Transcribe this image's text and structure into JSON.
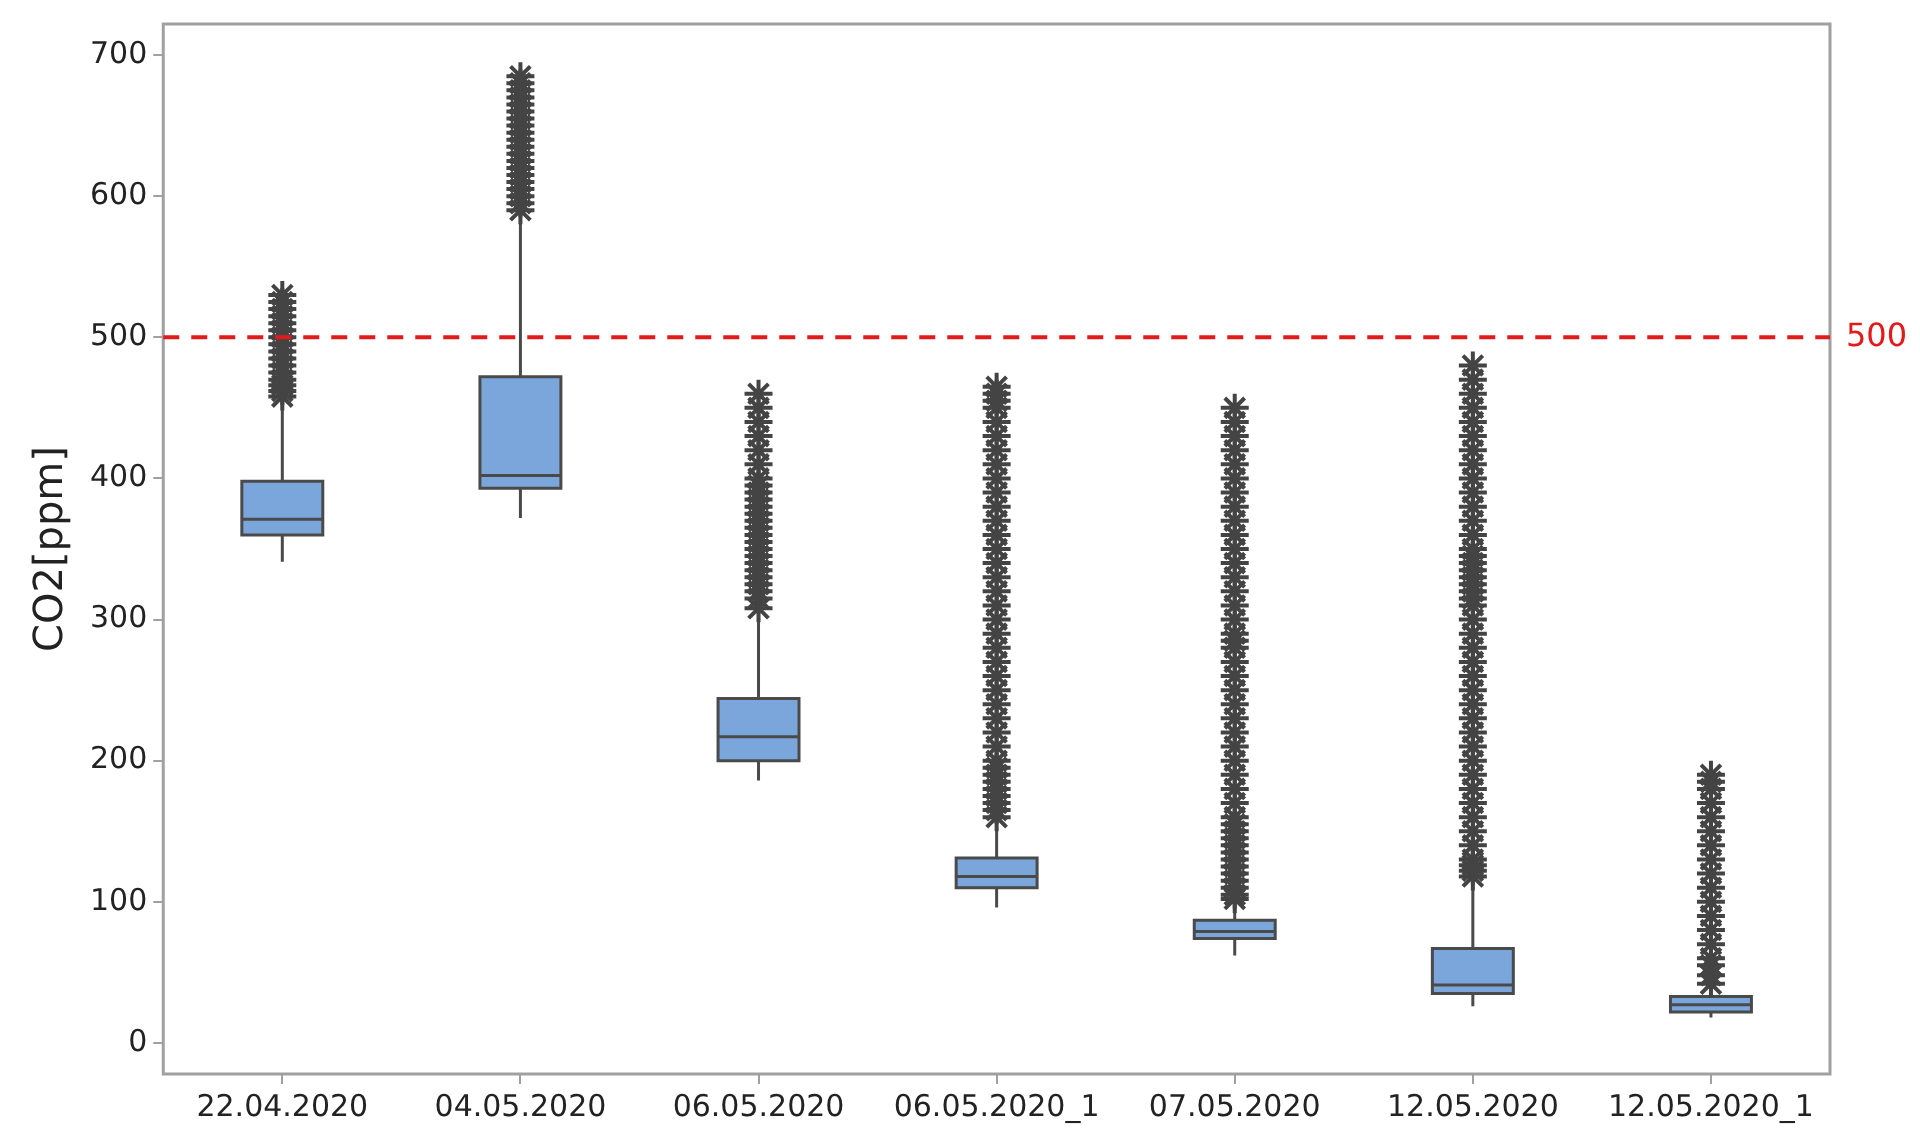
{
  "chart_data": {
    "type": "box",
    "ylabel": "CO2[ppm]",
    "categories": [
      "22.04.2020",
      "04.05.2020",
      "06.05.2020",
      "06.05.2020_1",
      "07.05.2020",
      "12.05.2020",
      "12.05.2020_1"
    ],
    "color": "#7aa6dc",
    "ylim": [
      -22,
      722
    ],
    "yticks": [
      0,
      100,
      200,
      300,
      400,
      500,
      600,
      700
    ],
    "grid": false,
    "legend": false,
    "marker": "star",
    "ref_lines": [
      {
        "axis": "y",
        "value": 500,
        "label": "500",
        "color": "#e31a1c",
        "line_style": "dashed"
      }
    ],
    "boxes": [
      {
        "low": 341,
        "q1": 360,
        "median": 371,
        "q3": 398,
        "high": 455,
        "outliers": [
          458,
          462,
          466,
          470,
          475,
          480,
          485,
          490,
          495,
          500,
          505,
          510,
          515,
          520,
          525,
          530
        ]
      },
      {
        "low": 372,
        "q1": 393,
        "median": 402,
        "q3": 472,
        "high": 583,
        "outliers": [
          590,
          595,
          600,
          605,
          610,
          615,
          620,
          625,
          630,
          635,
          640,
          645,
          650,
          655,
          660,
          665,
          670,
          675,
          680,
          685
        ]
      },
      {
        "low": 186,
        "q1": 200,
        "median": 217,
        "q3": 244,
        "high": 305,
        "outliers": [
          308,
          315,
          320,
          325,
          330,
          335,
          340,
          345,
          350,
          355,
          360,
          365,
          370,
          375,
          380,
          385,
          390,
          395,
          400,
          410,
          420,
          430,
          440,
          450,
          460
        ]
      },
      {
        "low": 96,
        "q1": 110,
        "median": 118,
        "q3": 131,
        "high": 153,
        "outliers": [
          160,
          165,
          170,
          175,
          180,
          185,
          190,
          195,
          200,
          210,
          220,
          230,
          240,
          250,
          260,
          270,
          280,
          290,
          300,
          310,
          320,
          330,
          340,
          350,
          360,
          370,
          380,
          390,
          400,
          410,
          420,
          430,
          440,
          450,
          455,
          460,
          465
        ]
      },
      {
        "low": 62,
        "q1": 74,
        "median": 79,
        "q3": 87,
        "high": 96,
        "outliers": [
          102,
          105,
          110,
          115,
          120,
          125,
          130,
          135,
          140,
          145,
          150,
          155,
          160,
          170,
          180,
          190,
          200,
          210,
          220,
          230,
          240,
          250,
          260,
          270,
          280,
          285,
          290,
          300,
          310,
          320,
          330,
          340,
          350,
          360,
          370,
          380,
          390,
          400,
          410,
          420,
          430,
          440,
          450
        ]
      },
      {
        "low": 26,
        "q1": 35,
        "median": 41,
        "q3": 67,
        "high": 115,
        "outliers": [
          118,
          122,
          126,
          130,
          140,
          150,
          160,
          170,
          180,
          190,
          200,
          210,
          220,
          230,
          240,
          250,
          260,
          270,
          280,
          290,
          300,
          310,
          315,
          320,
          325,
          330,
          335,
          340,
          345,
          350,
          360,
          370,
          380,
          390,
          400,
          410,
          420,
          430,
          440,
          450,
          460,
          470,
          480
        ]
      },
      {
        "low": 18,
        "q1": 22,
        "median": 27,
        "q3": 33,
        "high": 38,
        "outliers": [
          42,
          48,
          55,
          60,
          70,
          80,
          90,
          100,
          110,
          120,
          130,
          140,
          150,
          160,
          170,
          180,
          185,
          190
        ]
      }
    ]
  }
}
